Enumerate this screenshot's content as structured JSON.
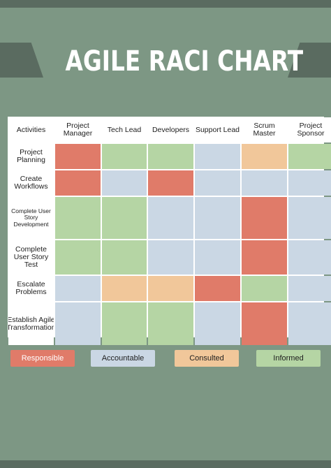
{
  "title": "AGILE RACI CHART",
  "columns": [
    "Activities",
    "Project Manager",
    "Tech Lead",
    "Developers",
    "Support Lead",
    "Scrum Master",
    "Project Sponsor"
  ],
  "rows": [
    {
      "activity": "Project Planning",
      "cells": [
        "R",
        "I",
        "I",
        "A",
        "C",
        "I"
      ]
    },
    {
      "activity": "Create Workflows",
      "cells": [
        "R",
        "A",
        "R",
        "A",
        "A",
        "A"
      ]
    },
    {
      "activity": "Complete User Story Development",
      "cells": [
        "I",
        "I",
        "A",
        "A",
        "R",
        "A"
      ]
    },
    {
      "activity": "Complete User Story Test",
      "cells": [
        "I",
        "I",
        "A",
        "A",
        "R",
        "A"
      ]
    },
    {
      "activity": "Escalate Problems",
      "cells": [
        "A",
        "C",
        "C",
        "R",
        "I",
        "A"
      ]
    },
    {
      "activity": "Establish Agile Transformation",
      "cells": [
        "A",
        "I",
        "I",
        "A",
        "R",
        "A"
      ]
    }
  ],
  "legend": {
    "responsible": "Responsible",
    "accountable": "Accountable",
    "consulted": "Consulted",
    "informed": "Informed"
  },
  "colors": {
    "responsible": "#e07b69",
    "accountable": "#cad7e4",
    "consulted": "#f1c79a",
    "informed": "#b5d5a4",
    "background": "#7d9784",
    "band": "#5a6b60"
  }
}
